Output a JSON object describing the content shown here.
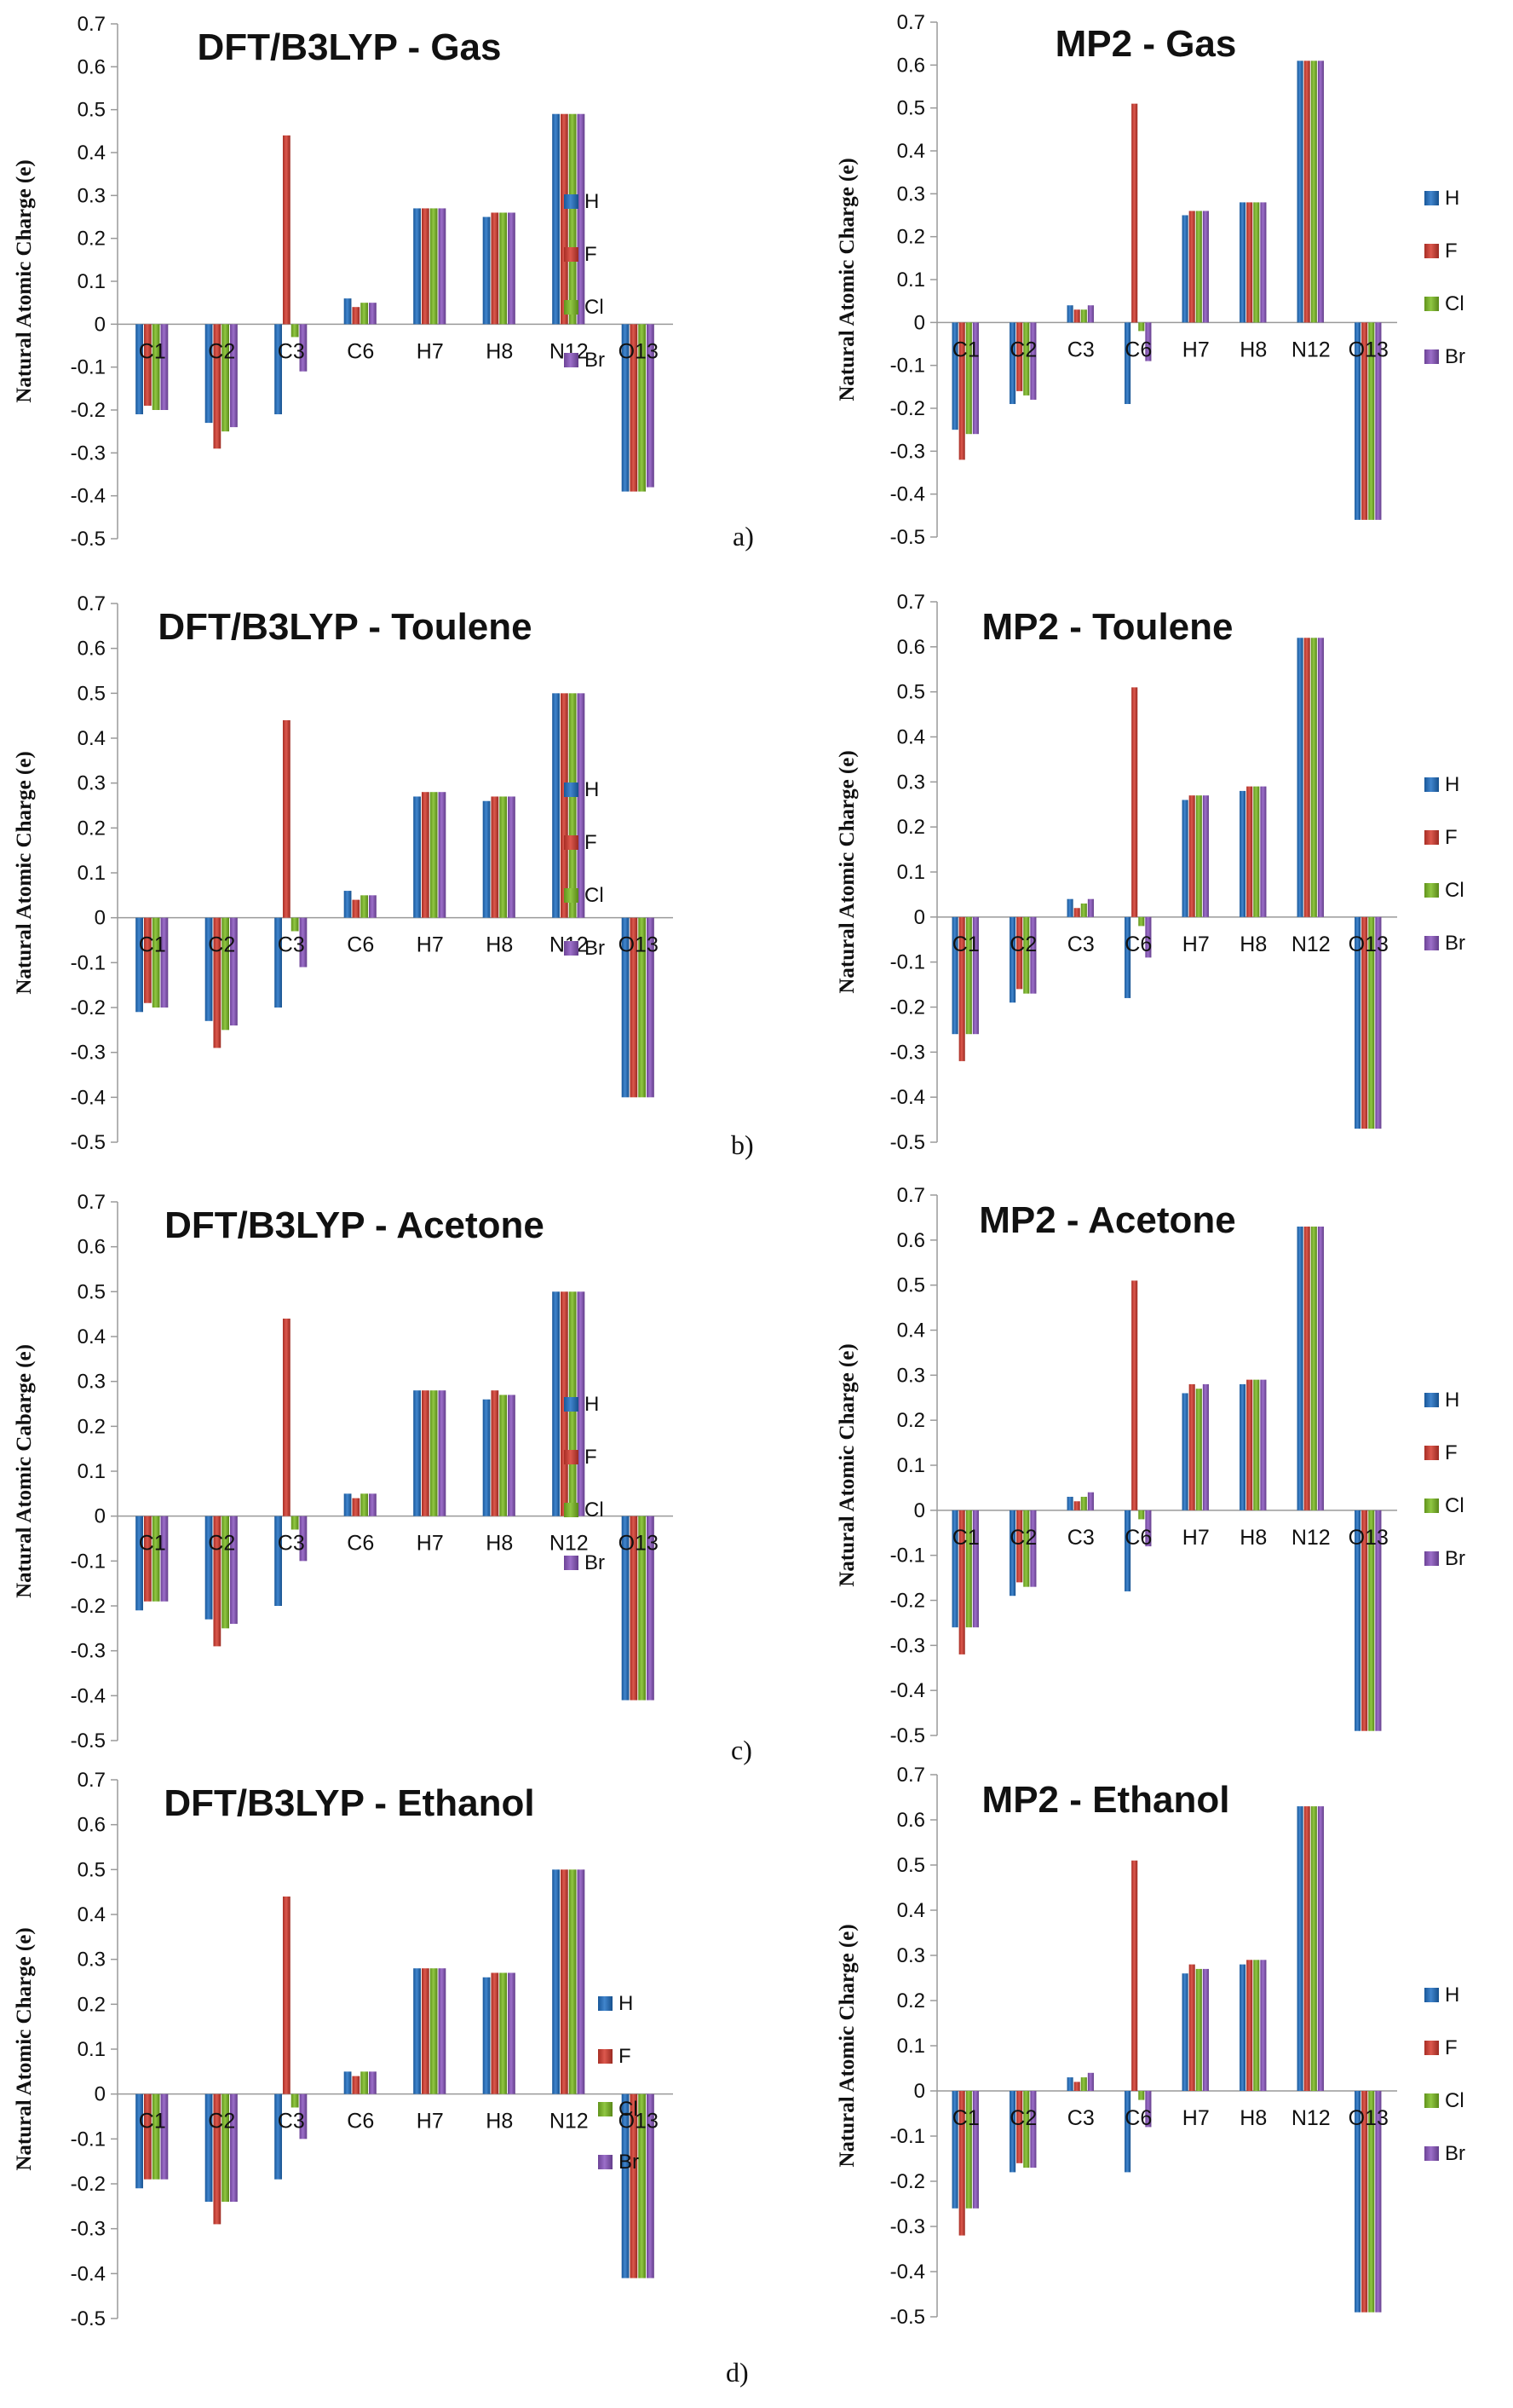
{
  "figure": {
    "series_colors": {
      "H": "#1f6fc4",
      "F": "#d63a2e",
      "Cl": "#7cbd22",
      "Br": "#8a55c0"
    },
    "panel_labels": [
      "a)",
      "b)",
      "c)",
      "d)"
    ]
  },
  "chart_data": [
    {
      "type": "bar",
      "title": "DFT/B3LYP - Gas",
      "ylabel": "Natural Atomic Charge (e)",
      "xlabel": "",
      "ylim": [
        -0.5,
        0.7
      ],
      "yticks": [
        "0.7",
        "0.6",
        "0.5",
        "0.4",
        "0.3",
        "0.2",
        "0.1",
        "0",
        "-0.1",
        "-0.2",
        "-0.3",
        "-0.4",
        "-0.5"
      ],
      "categories": [
        "C1",
        "C2",
        "C3",
        "C6",
        "H7",
        "H8",
        "N12",
        "O13"
      ],
      "series": [
        {
          "name": "H",
          "values": [
            -0.21,
            -0.23,
            -0.21,
            0.06,
            0.27,
            0.25,
            0.49,
            -0.39
          ]
        },
        {
          "name": "F",
          "values": [
            -0.19,
            -0.29,
            0.44,
            0.04,
            0.27,
            0.26,
            0.49,
            -0.39
          ]
        },
        {
          "name": "Cl",
          "values": [
            -0.2,
            -0.25,
            -0.03,
            0.05,
            0.27,
            0.26,
            0.49,
            -0.39
          ]
        },
        {
          "name": "Br",
          "values": [
            -0.2,
            -0.24,
            -0.11,
            0.05,
            0.27,
            0.26,
            0.49,
            -0.38
          ]
        }
      ],
      "legend": "right"
    },
    {
      "type": "bar",
      "title": "MP2 - Gas",
      "ylabel": "Natural Atomic Charge (e)",
      "xlabel": "",
      "ylim": [
        -0.5,
        0.7
      ],
      "yticks": [
        "0.7",
        "0.6",
        "0.5",
        "0.4",
        "0.3",
        "0.2",
        "0.1",
        "0",
        "-0.1",
        "-0.2",
        "-0.3",
        "-0.4",
        "-0.5"
      ],
      "categories": [
        "C1",
        "C2",
        "C3",
        "C6",
        "H7",
        "H8",
        "N12",
        "O13"
      ],
      "series": [
        {
          "name": "H",
          "values": [
            -0.25,
            -0.19,
            0.04,
            -0.19,
            0.25,
            0.28,
            0.61,
            -0.46
          ]
        },
        {
          "name": "F",
          "values": [
            -0.32,
            -0.16,
            0.03,
            0.51,
            0.26,
            0.28,
            0.61,
            -0.46
          ]
        },
        {
          "name": "Cl",
          "values": [
            -0.26,
            -0.17,
            0.03,
            -0.02,
            0.26,
            0.28,
            0.61,
            -0.46
          ]
        },
        {
          "name": "Br",
          "values": [
            -0.26,
            -0.18,
            0.04,
            -0.09,
            0.26,
            0.28,
            0.61,
            -0.46
          ]
        }
      ],
      "legend": "right"
    },
    {
      "type": "bar",
      "title": "DFT/B3LYP - Toulene",
      "ylabel": "Natural Atomic Charge (e)",
      "xlabel": "",
      "ylim": [
        -0.5,
        0.7
      ],
      "yticks": [
        "0.7",
        "0.6",
        "0.5",
        "0.4",
        "0.3",
        "0.2",
        "0.1",
        "0",
        "-0.1",
        "-0.2",
        "-0.3",
        "-0.4",
        "-0.5"
      ],
      "categories": [
        "C1",
        "C2",
        "C3",
        "C6",
        "H7",
        "H8",
        "N12",
        "O13"
      ],
      "series": [
        {
          "name": "H",
          "values": [
            -0.21,
            -0.23,
            -0.2,
            0.06,
            0.27,
            0.26,
            0.5,
            -0.4
          ]
        },
        {
          "name": "F",
          "values": [
            -0.19,
            -0.29,
            0.44,
            0.04,
            0.28,
            0.27,
            0.5,
            -0.4
          ]
        },
        {
          "name": "Cl",
          "values": [
            -0.2,
            -0.25,
            -0.03,
            0.05,
            0.28,
            0.27,
            0.5,
            -0.4
          ]
        },
        {
          "name": "Br",
          "values": [
            -0.2,
            -0.24,
            -0.11,
            0.05,
            0.28,
            0.27,
            0.5,
            -0.4
          ]
        }
      ],
      "legend": "right"
    },
    {
      "type": "bar",
      "title": "MP2 - Toulene",
      "ylabel": "Natural Atomic Charge (e)",
      "xlabel": "",
      "ylim": [
        -0.5,
        0.7
      ],
      "yticks": [
        "0.7",
        "0.6",
        "0.5",
        "0.4",
        "0.3",
        "0.2",
        "0.1",
        "0",
        "-0.1",
        "-0.2",
        "-0.3",
        "-0.4",
        "-0.5"
      ],
      "categories": [
        "C1",
        "C2",
        "C3",
        "C6",
        "H7",
        "H8",
        "N12",
        "O13"
      ],
      "series": [
        {
          "name": "H",
          "values": [
            -0.26,
            -0.19,
            0.04,
            -0.18,
            0.26,
            0.28,
            0.62,
            -0.47
          ]
        },
        {
          "name": "F",
          "values": [
            -0.32,
            -0.16,
            0.02,
            0.51,
            0.27,
            0.29,
            0.62,
            -0.47
          ]
        },
        {
          "name": "Cl",
          "values": [
            -0.26,
            -0.17,
            0.03,
            -0.02,
            0.27,
            0.29,
            0.62,
            -0.47
          ]
        },
        {
          "name": "Br",
          "values": [
            -0.26,
            -0.17,
            0.04,
            -0.09,
            0.27,
            0.29,
            0.62,
            -0.47
          ]
        }
      ],
      "legend": "right"
    },
    {
      "type": "bar",
      "title": "DFT/B3LYP - Acetone",
      "ylabel": "Natural Atomic Cabarge (e)",
      "xlabel": "",
      "ylim": [
        -0.5,
        0.7
      ],
      "yticks": [
        "0.7",
        "0.6",
        "0.5",
        "0.4",
        "0.3",
        "0.2",
        "0.1",
        "0",
        "-0.1",
        "-0.2",
        "-0.3",
        "-0.4",
        "-0.5"
      ],
      "categories": [
        "C1",
        "C2",
        "C3",
        "C6",
        "H7",
        "H8",
        "N12",
        "O13"
      ],
      "series": [
        {
          "name": "H",
          "values": [
            -0.21,
            -0.23,
            -0.2,
            0.05,
            0.28,
            0.26,
            0.5,
            -0.41
          ]
        },
        {
          "name": "F",
          "values": [
            -0.19,
            -0.29,
            0.44,
            0.04,
            0.28,
            0.28,
            0.5,
            -0.41
          ]
        },
        {
          "name": "Cl",
          "values": [
            -0.19,
            -0.25,
            -0.03,
            0.05,
            0.28,
            0.27,
            0.5,
            -0.41
          ]
        },
        {
          "name": "Br",
          "values": [
            -0.19,
            -0.24,
            -0.1,
            0.05,
            0.28,
            0.27,
            0.5,
            -0.41
          ]
        }
      ],
      "legend": "right"
    },
    {
      "type": "bar",
      "title": "MP2 - Acetone",
      "ylabel": "Natural Atomic Charge (e)",
      "xlabel": "",
      "ylim": [
        -0.5,
        0.7
      ],
      "yticks": [
        "0.7",
        "0.6",
        "0.5",
        "0.4",
        "0.3",
        "0.2",
        "0.1",
        "0",
        "-0.1",
        "-0.2",
        "-0.3",
        "-0.4",
        "-0.5"
      ],
      "categories": [
        "C1",
        "C2",
        "C3",
        "C6",
        "H7",
        "H8",
        "N12",
        "O13"
      ],
      "series": [
        {
          "name": "H",
          "values": [
            -0.26,
            -0.19,
            0.03,
            -0.18,
            0.26,
            0.28,
            0.63,
            -0.49
          ]
        },
        {
          "name": "F",
          "values": [
            -0.32,
            -0.16,
            0.02,
            0.51,
            0.28,
            0.29,
            0.63,
            -0.49
          ]
        },
        {
          "name": "Cl",
          "values": [
            -0.26,
            -0.17,
            0.03,
            -0.02,
            0.27,
            0.29,
            0.63,
            -0.49
          ]
        },
        {
          "name": "Br",
          "values": [
            -0.26,
            -0.17,
            0.04,
            -0.08,
            0.28,
            0.29,
            0.63,
            -0.49
          ]
        }
      ],
      "legend": "right"
    },
    {
      "type": "bar",
      "title": "DFT/B3LYP - Ethanol",
      "ylabel": "Natural Atomic Charge (e)",
      "xlabel": "",
      "ylim": [
        -0.5,
        0.7
      ],
      "yticks": [
        "0.7",
        "0.6",
        "0.5",
        "0.4",
        "0.3",
        "0.2",
        "0.1",
        "0",
        "-0.1",
        "-0.2",
        "-0.3",
        "-0.4",
        "-0.5"
      ],
      "categories": [
        "C1",
        "C2",
        "C3",
        "C6",
        "H7",
        "H8",
        "N12",
        "O13"
      ],
      "series": [
        {
          "name": "H",
          "values": [
            -0.21,
            -0.24,
            -0.19,
            0.05,
            0.28,
            0.26,
            0.5,
            -0.41
          ]
        },
        {
          "name": "F",
          "values": [
            -0.19,
            -0.29,
            0.44,
            0.04,
            0.28,
            0.27,
            0.5,
            -0.41
          ]
        },
        {
          "name": "Cl",
          "values": [
            -0.19,
            -0.24,
            -0.03,
            0.05,
            0.28,
            0.27,
            0.5,
            -0.41
          ]
        },
        {
          "name": "Br",
          "values": [
            -0.19,
            -0.24,
            -0.1,
            0.05,
            0.28,
            0.27,
            0.5,
            -0.41
          ]
        }
      ],
      "legend": "right"
    },
    {
      "type": "bar",
      "title": "MP2 - Ethanol",
      "ylabel": "Natural Atomic Charge (e)",
      "xlabel": "",
      "ylim": [
        -0.5,
        0.7
      ],
      "yticks": [
        "0.7",
        "0.6",
        "0.5",
        "0.4",
        "0.3",
        "0.2",
        "0.1",
        "0",
        "-0.1",
        "-0.2",
        "-0.3",
        "-0.4",
        "-0.5"
      ],
      "categories": [
        "C1",
        "C2",
        "C3",
        "C6",
        "H7",
        "H8",
        "N12",
        "O13"
      ],
      "series": [
        {
          "name": "H",
          "values": [
            -0.26,
            -0.18,
            0.03,
            -0.18,
            0.26,
            0.28,
            0.63,
            -0.49
          ]
        },
        {
          "name": "F",
          "values": [
            -0.32,
            -0.16,
            0.02,
            0.51,
            0.28,
            0.29,
            0.63,
            -0.49
          ]
        },
        {
          "name": "Cl",
          "values": [
            -0.26,
            -0.17,
            0.03,
            -0.02,
            0.27,
            0.29,
            0.63,
            -0.49
          ]
        },
        {
          "name": "Br",
          "values": [
            -0.26,
            -0.17,
            0.04,
            -0.08,
            0.27,
            0.29,
            0.63,
            -0.49
          ]
        }
      ],
      "legend": "right"
    }
  ]
}
